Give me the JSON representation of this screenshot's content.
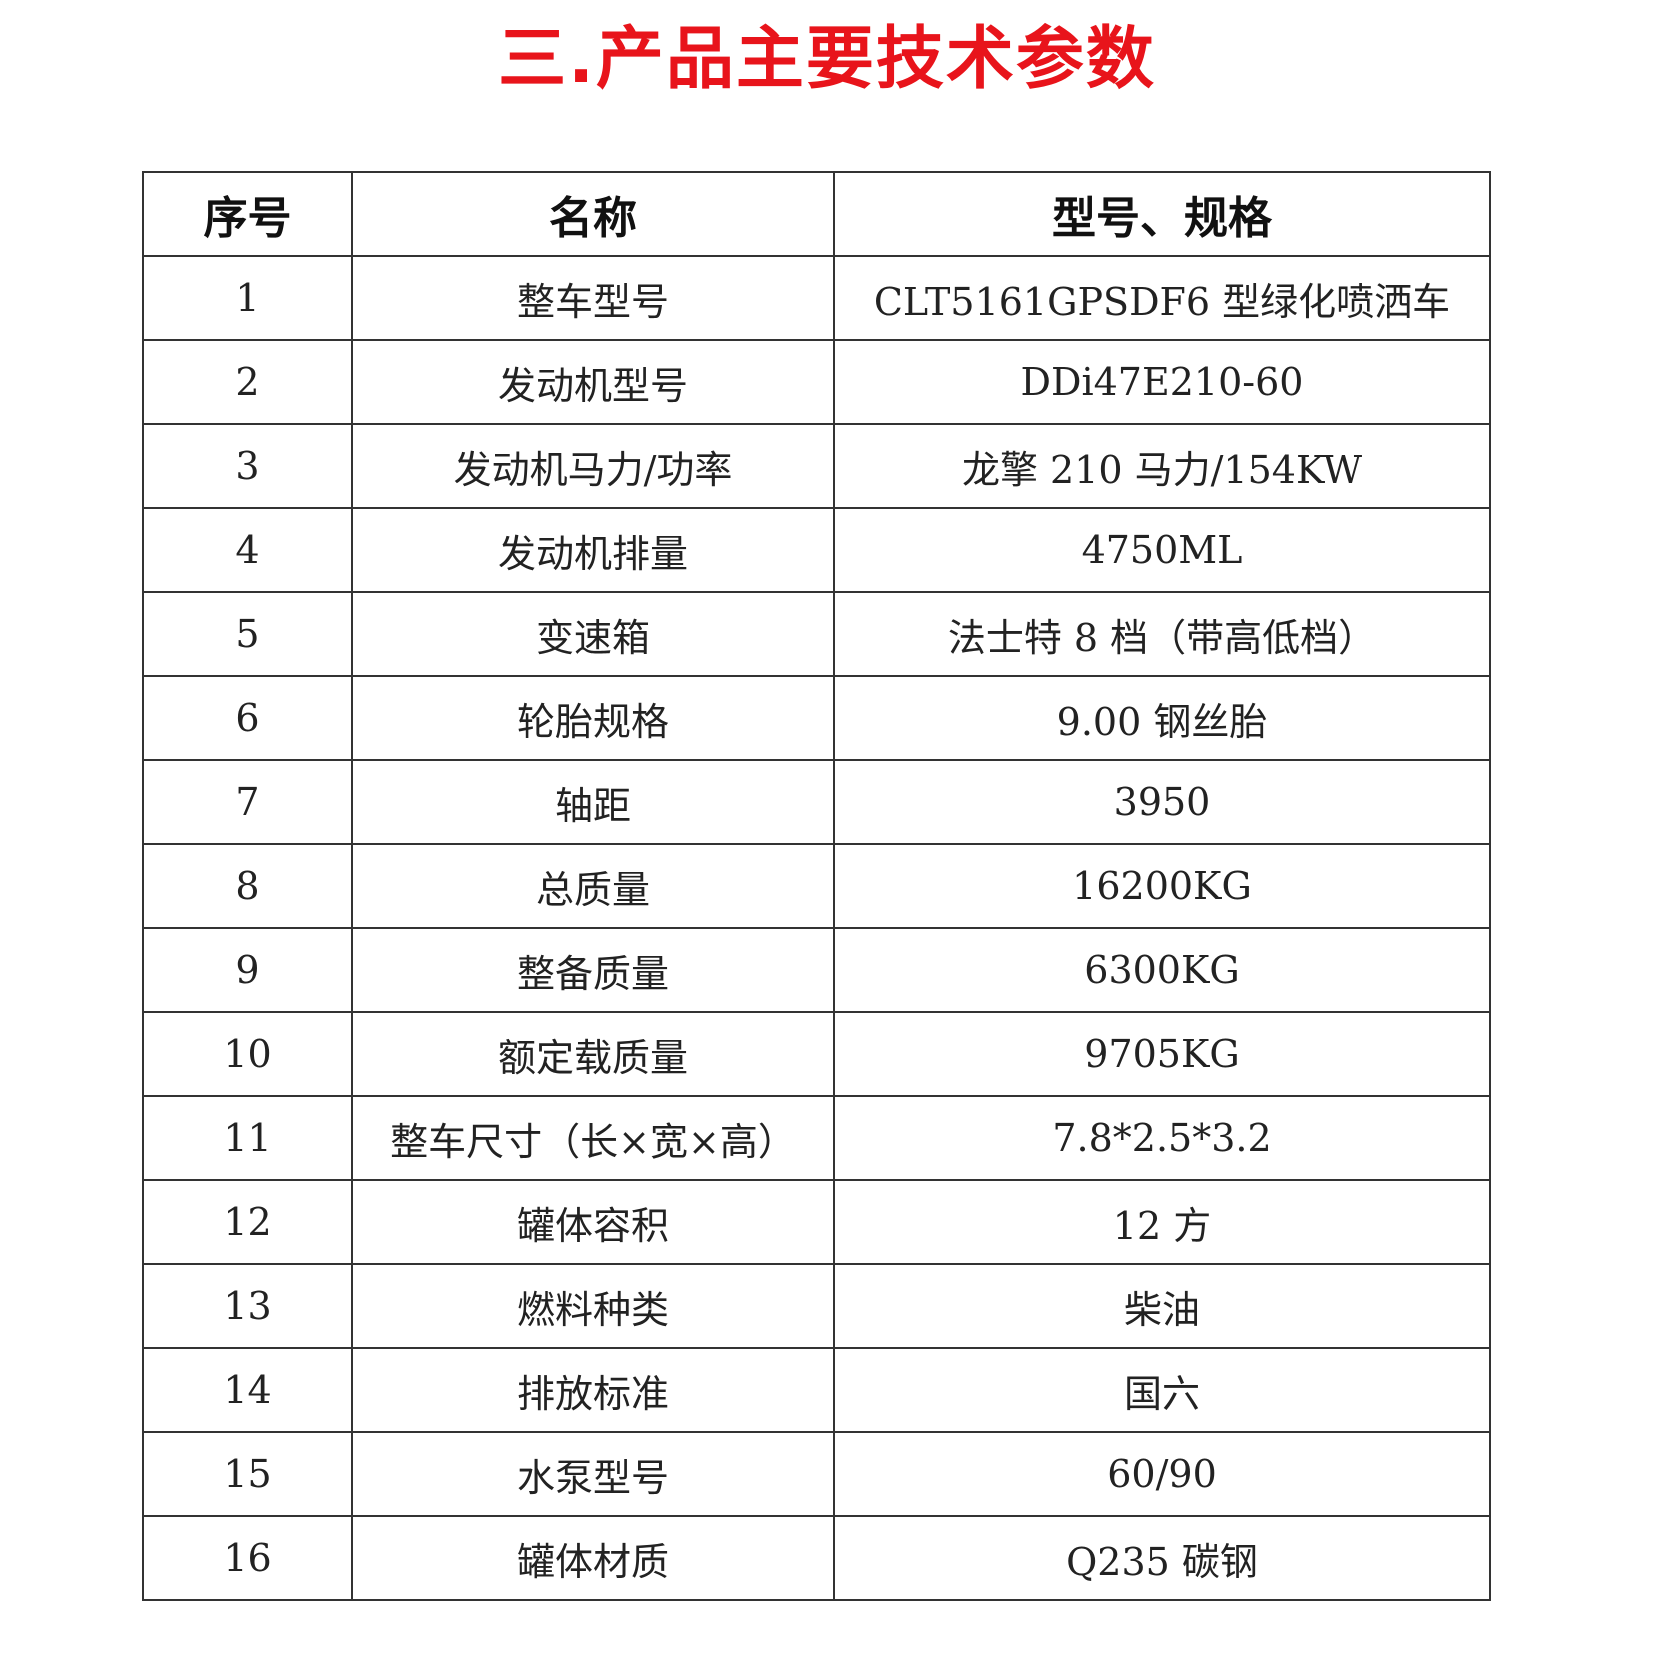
{
  "header": {
    "title": "三.产品主要技术参数"
  },
  "table": {
    "columns": [
      "序号",
      "名称",
      "型号、规格"
    ],
    "rows": [
      [
        "1",
        "整车型号",
        "CLT5161GPSDF6 型绿化喷洒车"
      ],
      [
        "2",
        "发动机型号",
        "DDi47E210-60"
      ],
      [
        "3",
        "发动机马力/功率",
        "龙擎 210 马力/154KW"
      ],
      [
        "4",
        "发动机排量",
        "4750ML"
      ],
      [
        "5",
        "变速箱",
        "法士特 8 档（带高低档）"
      ],
      [
        "6",
        "轮胎规格",
        "9.00 钢丝胎"
      ],
      [
        "7",
        "轴距",
        "3950"
      ],
      [
        "8",
        "总质量",
        "16200KG"
      ],
      [
        "9",
        "整备质量",
        "6300KG"
      ],
      [
        "10",
        "额定载质量",
        "9705KG"
      ],
      [
        "11",
        "整车尺寸（长×宽×高）",
        "7.8*2.5*3.2"
      ],
      [
        "12",
        "罐体容积",
        "12 方"
      ],
      [
        "13",
        "燃料种类",
        "柴油"
      ],
      [
        "14",
        "排放标准",
        "国六"
      ],
      [
        "15",
        "水泵型号",
        "60/90"
      ],
      [
        "16",
        "罐体材质",
        "Q235 碳钢"
      ]
    ]
  }
}
